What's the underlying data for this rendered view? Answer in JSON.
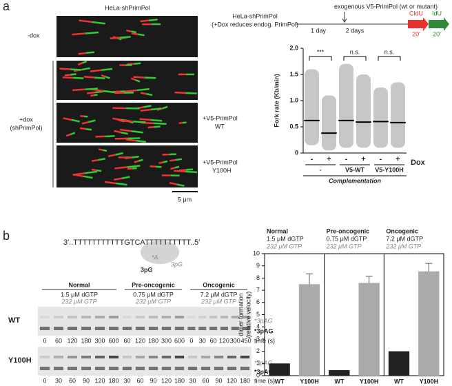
{
  "panel_a": {
    "letter": "a",
    "image_title": "HeLa-shPrimPol",
    "row_minus_dox": "-dox",
    "row_plus_dox": [
      "+dox",
      "(shPrimPol)"
    ],
    "row_wt": [
      "+V5-PrimPol",
      "WT"
    ],
    "row_y100h": [
      "+V5-PrimPol",
      "Y100H"
    ],
    "scale_bar": "5 μm",
    "scheme_cells": [
      "HeLa-shPrimPol",
      "(+Dox reduces endog. PrimPol)"
    ],
    "scheme_exogenous": "exogenous V5-PrimPol (wt or mutant)",
    "scheme_days": [
      "1 day",
      "2 days"
    ],
    "scheme_labels": [
      {
        "name": "CldU",
        "time": "20'"
      },
      {
        "name": "IdU",
        "time": "20'"
      }
    ]
  },
  "panel_b": {
    "letter": "b",
    "template": "3′..TTTTTTTTTTTGTCATTTTTTTTTT..5′",
    "template_bases": [
      "*A",
      "3pG",
      "3pG"
    ],
    "conditions": [
      {
        "name": "Normal",
        "dgtp": "1.5 μM dGTP",
        "gtp": "232 μM GTP"
      },
      {
        "name": "Pre-oncogenic",
        "dgtp": "0.75 μM dGTP",
        "gtp": "232 μM GTP"
      },
      {
        "name": "Oncogenic",
        "dgtp": "7.2 μM dGTP",
        "gtp": "232 μM GTP"
      }
    ],
    "gels": [
      {
        "label": "WT",
        "times": [
          [
            0,
            60,
            120,
            180,
            300,
            600
          ],
          [
            60,
            120,
            180,
            300,
            600
          ],
          [
            0,
            30,
            60,
            120,
            300,
            450
          ]
        ]
      },
      {
        "label": "Y100H",
        "times": [
          [
            0,
            30,
            60,
            90,
            120,
            180
          ],
          [
            30,
            60,
            90,
            120,
            180
          ],
          [
            30,
            60,
            90,
            120,
            180
          ]
        ]
      }
    ],
    "time_label": "time (s)",
    "product_labels": [
      "*3pAG",
      "*3pAG"
    ]
  },
  "chart_data": [
    {
      "type": "dot",
      "ylabel": "Fork rate (Kb/min)",
      "ylim": [
        0,
        2
      ],
      "yticks": [
        0,
        0.5,
        {
          "value": 1,
          "label": "1.0"
        },
        1.5,
        {
          "value": 2,
          "label": "2.0"
        }
      ],
      "categories": [
        "-",
        "+",
        "-",
        "+",
        "-",
        "+"
      ],
      "medians": [
        0.62,
        0.38,
        0.62,
        0.59,
        0.6,
        0.58
      ],
      "mins": [
        0.15,
        0.05,
        0.1,
        0.1,
        0.1,
        0.1
      ],
      "maxs": [
        1.6,
        1.1,
        1.7,
        1.5,
        1.25,
        1.35
      ],
      "color": "#999999",
      "x_label": "Dox",
      "groups": [
        "-",
        "V5-WT",
        "V5-Y100H"
      ],
      "group_title": "Complementation",
      "significance": [
        "***",
        "n.s.",
        "n.s."
      ]
    },
    {
      "type": "bar",
      "ylabel": [
        "dimer formation",
        "(relative velocity)"
      ],
      "ylim": [
        0,
        10
      ],
      "yticks": [
        0,
        1,
        2,
        3,
        4,
        5,
        6,
        7,
        8,
        9,
        10
      ],
      "categories": [
        "WT",
        "Y100H",
        "WT",
        "Y100H",
        "WT",
        "Y100H"
      ],
      "values": [
        1.0,
        7.5,
        0.45,
        7.6,
        2.0,
        8.55
      ],
      "errors": [
        null,
        0.85,
        null,
        0.55,
        null,
        0.65
      ],
      "colors": [
        "#222222",
        "#aaaaaa",
        "#222222",
        "#aaaaaa",
        "#222222",
        "#aaaaaa"
      ]
    }
  ]
}
